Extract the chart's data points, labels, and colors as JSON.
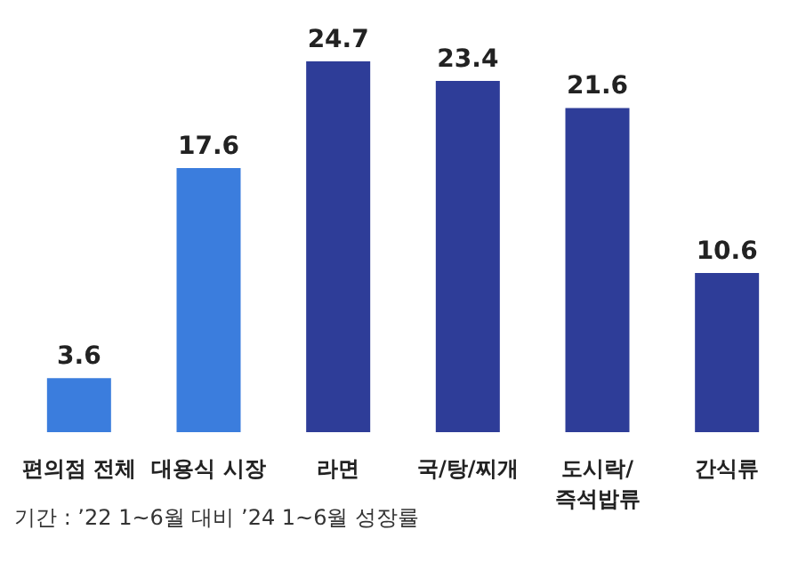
{
  "chart_data": {
    "type": "bar",
    "categories": [
      "편의점 전체",
      "대용식 시장",
      "라면",
      "국/탕/찌개",
      "도시락/\n즉석밥류",
      "간식류"
    ],
    "values": [
      3.6,
      17.6,
      24.7,
      23.4,
      21.6,
      10.6
    ],
    "colors": [
      "#3b7ddd",
      "#3b7ddd",
      "#2e3d98",
      "#2e3d98",
      "#2e3d98",
      "#2e3d98"
    ],
    "data_labels": true,
    "annotations": [
      "기간 : ’22 1~6월 대비 ’24 1~6월 성장률"
    ]
  }
}
